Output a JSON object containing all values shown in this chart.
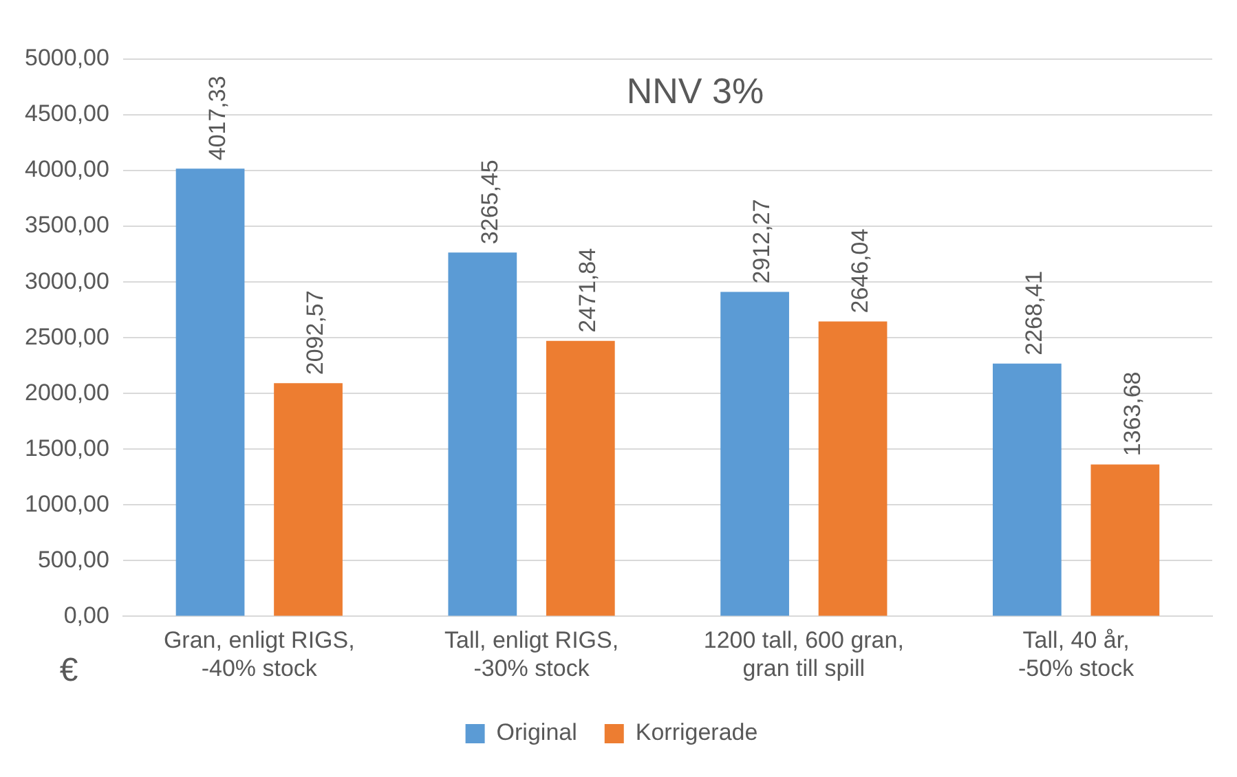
{
  "chart_data": {
    "type": "bar",
    "title": "NNV 3%",
    "ylabel": "€",
    "categories": [
      "Gran, enligt RIGS,\n-40% stock",
      "Tall, enligt RIGS,\n-30% stock",
      "1200 tall, 600 gran,\ngran till spill",
      "Tall, 40 år,\n-50% stock"
    ],
    "series": [
      {
        "name": "Original",
        "color": "#5b9bd5",
        "values": [
          4017.33,
          3265.45,
          2912.27,
          2268.41
        ],
        "value_labels": [
          "4017,33",
          "3265,45",
          "2912,27",
          "2268,41"
        ]
      },
      {
        "name": "Korrigerade",
        "color": "#ed7d31",
        "values": [
          2092.57,
          2471.84,
          2646.04,
          1363.68
        ],
        "value_labels": [
          "2092,57",
          "2471,84",
          "2646,04",
          "1363,68"
        ]
      }
    ],
    "ylim": [
      0,
      5000
    ],
    "yticks": [
      {
        "value": 0,
        "label": "0,00"
      },
      {
        "value": 500,
        "label": "500,00"
      },
      {
        "value": 1000,
        "label": "1000,00"
      },
      {
        "value": 1500,
        "label": "1500,00"
      },
      {
        "value": 2000,
        "label": "2000,00"
      },
      {
        "value": 2500,
        "label": "2500,00"
      },
      {
        "value": 3000,
        "label": "3000,00"
      },
      {
        "value": 3500,
        "label": "3500,00"
      },
      {
        "value": 4000,
        "label": "4000,00"
      },
      {
        "value": 4500,
        "label": "4500,00"
      },
      {
        "value": 5000,
        "label": "5000,00"
      }
    ],
    "grid": "y",
    "legend": "bottom"
  }
}
